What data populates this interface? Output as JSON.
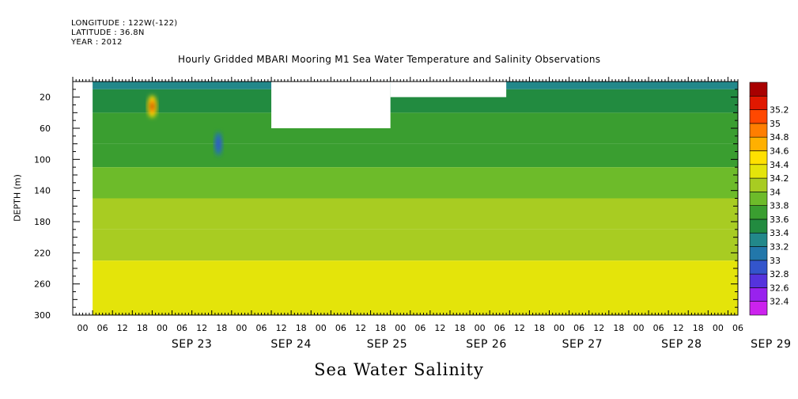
{
  "header": {
    "longitude": "LONGITUDE : 122W(-122)",
    "latitude": "LATITUDE : 36.8N",
    "year": "YEAR : 2012"
  },
  "chart_data": {
    "type": "heatmap",
    "title": "Hourly Gridded MBARI Mooring M1 Sea Water Temperature and Salinity Observations",
    "xlabel": "Sea Water Salinity",
    "ylabel": "DEPTH (m)",
    "x_unit": "hours since 2012-09-22 00:00",
    "xlim": [
      0,
      201
    ],
    "ylim": [
      300,
      0
    ],
    "y_ticks": [
      20,
      60,
      100,
      140,
      180,
      220,
      260,
      300
    ],
    "x_hour_labels": [
      "00",
      "06",
      "12",
      "18",
      "00",
      "06",
      "12",
      "18",
      "00",
      "06",
      "12",
      "18",
      "00",
      "06",
      "12",
      "18",
      "00",
      "06",
      "12",
      "18",
      "00",
      "06",
      "12",
      "18",
      "00",
      "06",
      "12",
      "18",
      "00",
      "06",
      "12",
      "18",
      "00",
      "06",
      "12",
      "18"
    ],
    "x_day_labels": [
      {
        "label": "SEP 23",
        "hour": 36
      },
      {
        "label": "SEP 24",
        "hour": 66
      },
      {
        "label": "SEP 25",
        "hour": 95
      },
      {
        "label": "SEP 26",
        "hour": 125
      },
      {
        "label": "SEP 27",
        "hour": 154
      },
      {
        "label": "SEP 28",
        "hour": 184
      },
      {
        "label": "SEP 29",
        "hour": 211
      }
    ],
    "colorbar": {
      "levels": [
        32.4,
        32.6,
        32.8,
        33,
        33.2,
        33.4,
        33.6,
        33.8,
        34,
        34.2,
        34.4,
        34.6,
        34.8,
        35,
        35.2
      ],
      "colors": [
        "#cc22ee",
        "#9922ee",
        "#5533dd",
        "#3355cc",
        "#2277aa",
        "#22888a",
        "#228b40",
        "#3a9e30",
        "#6dbb2a",
        "#a8cc22",
        "#e4e40a",
        "#ffe000",
        "#ffb000",
        "#ff7e00",
        "#ff4800",
        "#e01800",
        "#a80000"
      ]
    },
    "depth_bands": [
      {
        "top": 0,
        "bottom": 10,
        "salinity": 33.3
      },
      {
        "top": 10,
        "bottom": 40,
        "salinity": 33.5
      },
      {
        "top": 40,
        "bottom": 80,
        "salinity": 33.6
      },
      {
        "top": 80,
        "bottom": 110,
        "salinity": 33.7
      },
      {
        "top": 110,
        "bottom": 150,
        "salinity": 33.9
      },
      {
        "top": 150,
        "bottom": 190,
        "salinity": 34.0
      },
      {
        "top": 190,
        "bottom": 230,
        "salinity": 34.1
      },
      {
        "top": 230,
        "bottom": 300,
        "salinity": 34.3
      }
    ],
    "missing_regions": [
      {
        "hour_start": 0,
        "hour_end": 6,
        "depth_top": 0,
        "depth_bottom": 300
      },
      {
        "hour_start": 60,
        "hour_end": 96,
        "depth_top": 0,
        "depth_bottom": 60
      },
      {
        "hour_start": 96,
        "hour_end": 131,
        "depth_top": 0,
        "depth_bottom": 20
      }
    ],
    "anomalies": [
      {
        "hour": 24,
        "depth": 32,
        "salinity": 35.2
      },
      {
        "hour": 44,
        "depth": 80,
        "salinity": 32.8
      }
    ]
  }
}
